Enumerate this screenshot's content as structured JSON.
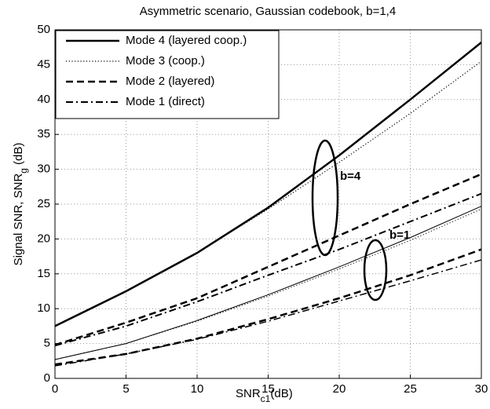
{
  "chart_data": {
    "type": "line",
    "title": "Asymmetric scenario, Gaussian codebook, b=1,4",
    "xlabel": {
      "text": "SNR",
      "sub": "c1",
      "after": "(dB)"
    },
    "ylabel": {
      "text": "Signal SNR, SNR",
      "sub": "g",
      "after": " (dB)"
    },
    "x": [
      0,
      5,
      10,
      15,
      20,
      25,
      30
    ],
    "xlim": [
      0,
      30
    ],
    "xticks": [
      0,
      5,
      10,
      15,
      20,
      25,
      30
    ],
    "ylim": [
      0,
      50
    ],
    "yticks": [
      0,
      5,
      10,
      15,
      20,
      25,
      30,
      35,
      40,
      45,
      50
    ],
    "grid": true,
    "legend": "upper left",
    "annotations": [
      "b=4",
      "b=1"
    ],
    "series": [
      {
        "name": "Mode 4 (layered coop.)",
        "color": "#000000",
        "dash": "solid",
        "width": 2.5,
        "width_b1": 1,
        "values": [
          7.5,
          12.5,
          18,
          24.5,
          32,
          40,
          48.2
        ],
        "values_b1": [
          2.7,
          5,
          8.3,
          12,
          16,
          20.2,
          24.7
        ]
      },
      {
        "name": "Mode 3 (coop.)",
        "color": "#000000",
        "dash": "dotted",
        "width": 1.2,
        "width_b1": 1,
        "values": [
          7.5,
          12.5,
          18,
          24.3,
          31,
          38,
          45.5
        ],
        "values_b1": [
          2.7,
          5,
          8.2,
          11.8,
          15.7,
          19.8,
          24.3
        ]
      },
      {
        "name": "Mode 2 (layered)",
        "color": "#000000",
        "dash": "dashed",
        "width": 2.5,
        "width_b1": 2.5,
        "values": [
          4.8,
          8,
          11.5,
          16,
          20.5,
          25,
          29.3
        ],
        "values_b1": [
          2,
          3.5,
          5.7,
          8.5,
          11.5,
          14.8,
          18.5
        ]
      },
      {
        "name": "Mode 1 (direct)",
        "color": "#000000",
        "dash": "dashdot",
        "width": 2,
        "width_b1": 1.5,
        "values": [
          4.7,
          7.5,
          11,
          14.8,
          18.5,
          22.5,
          26.5
        ],
        "values_b1": [
          1.8,
          3.5,
          5.6,
          8.2,
          11.1,
          14,
          17
        ]
      }
    ]
  }
}
